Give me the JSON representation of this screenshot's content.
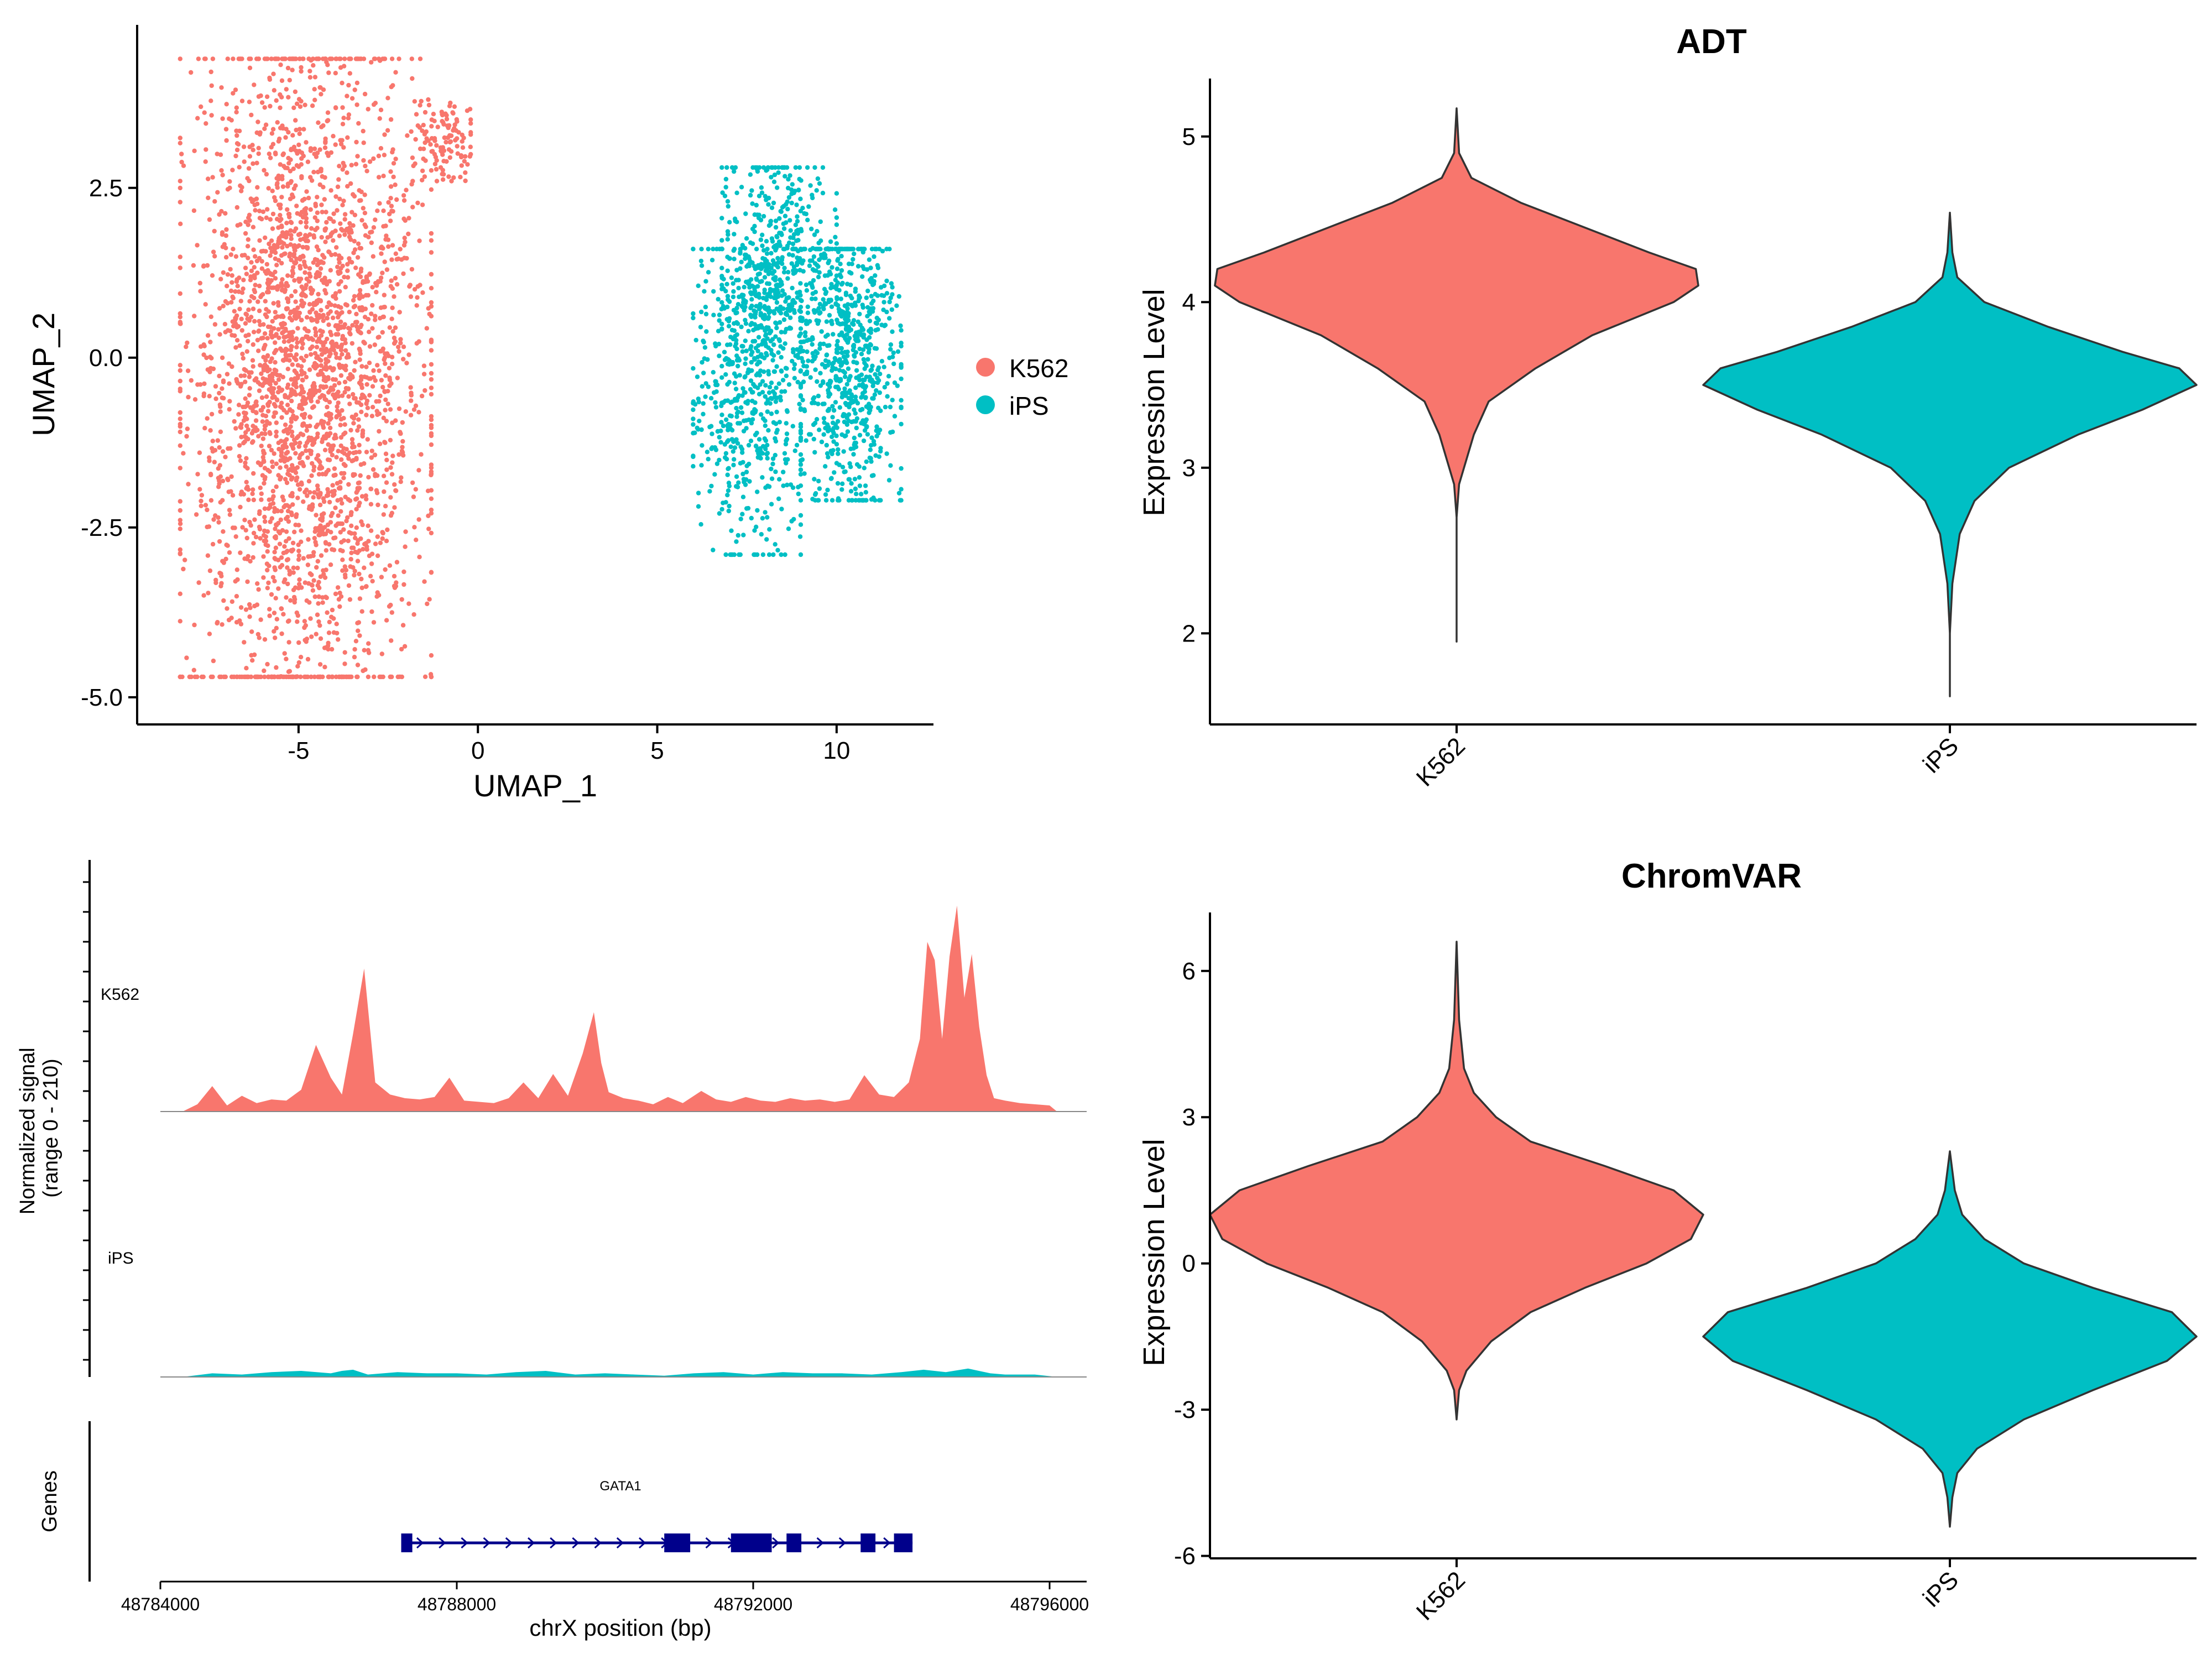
{
  "chart_data": [
    {
      "type": "scatter",
      "xlabel": "UMAP_1",
      "ylabel": "UMAP_2",
      "xlim": [
        -9.5,
        12.7
      ],
      "ylim": [
        -5.4,
        4.9
      ],
      "xticks": [
        -5,
        0,
        5,
        10
      ],
      "xtick_labels": [
        "-5",
        "0",
        "5",
        "10"
      ],
      "yticks": [
        -5.0,
        -2.5,
        0.0,
        2.5
      ],
      "ytick_labels": [
        "-5.0",
        "-2.5",
        "0.0",
        "2.5"
      ],
      "legend_position": "right",
      "series": [
        {
          "name": "K562",
          "color": "#F8766D",
          "clusters": [
            {
              "center": [
                -4.8,
                -0.2
              ],
              "spread": [
                1.6,
                2.4
              ],
              "range_x": [
                -8.3,
                -1.3
              ],
              "range_y": [
                -4.7,
                4.4
              ],
              "share": 0.96
            },
            {
              "center": [
                -1.0,
                3.2
              ],
              "spread": [
                0.4,
                0.3
              ],
              "range_x": [
                -2.2,
                -0.2
              ],
              "range_y": [
                2.6,
                3.8
              ],
              "share": 0.04
            }
          ]
        },
        {
          "name": "iPS",
          "color": "#00BFC4",
          "clusters": [
            {
              "center": [
                7.5,
                -0.6
              ],
              "spread": [
                0.8,
                1.2
              ],
              "range_x": [
                6.0,
                9.0
              ],
              "range_y": [
                -2.9,
                1.6
              ],
              "share": 0.3
            },
            {
              "center": [
                8.3,
                1.2
              ],
              "spread": [
                0.8,
                0.9
              ],
              "range_x": [
                6.8,
                10.0
              ],
              "range_y": [
                -0.8,
                2.8
              ],
              "share": 0.3
            },
            {
              "center": [
                10.3,
                -0.1
              ],
              "spread": [
                0.7,
                1.2
              ],
              "range_x": [
                9.0,
                11.8
              ],
              "range_y": [
                -2.1,
                1.6
              ],
              "share": 0.4
            }
          ]
        }
      ]
    },
    {
      "type": "violin",
      "title": "ADT",
      "ylabel": "Expression Level",
      "categories": [
        "K562",
        "iPS"
      ],
      "ylim": [
        1.45,
        5.35
      ],
      "yticks": [
        2,
        3,
        4,
        5
      ],
      "ytick_labels": [
        "2",
        "3",
        "4",
        "5"
      ],
      "series": [
        {
          "name": "K562",
          "color": "#F8766D",
          "min": 1.95,
          "max": 5.17,
          "profile": [
            [
              1.95,
              0.0
            ],
            [
              2.7,
              0.0
            ],
            [
              2.9,
              0.01
            ],
            [
              3.0,
              0.03
            ],
            [
              3.2,
              0.07
            ],
            [
              3.4,
              0.13
            ],
            [
              3.6,
              0.32
            ],
            [
              3.8,
              0.55
            ],
            [
              4.0,
              0.88
            ],
            [
              4.1,
              0.98
            ],
            [
              4.2,
              0.97
            ],
            [
              4.3,
              0.78
            ],
            [
              4.45,
              0.52
            ],
            [
              4.6,
              0.26
            ],
            [
              4.75,
              0.06
            ],
            [
              4.9,
              0.01
            ],
            [
              5.17,
              0.0
            ]
          ]
        },
        {
          "name": "iPS",
          "color": "#00BFC4",
          "min": 1.62,
          "max": 4.54,
          "profile": [
            [
              1.62,
              0.0
            ],
            [
              2.0,
              0.0
            ],
            [
              2.3,
              0.01
            ],
            [
              2.6,
              0.04
            ],
            [
              2.8,
              0.1
            ],
            [
              3.0,
              0.24
            ],
            [
              3.2,
              0.52
            ],
            [
              3.35,
              0.78
            ],
            [
              3.5,
              1.0
            ],
            [
              3.6,
              0.93
            ],
            [
              3.7,
              0.7
            ],
            [
              3.85,
              0.4
            ],
            [
              4.0,
              0.14
            ],
            [
              4.15,
              0.03
            ],
            [
              4.3,
              0.01
            ],
            [
              4.54,
              0.0
            ]
          ]
        }
      ]
    },
    {
      "type": "area",
      "xlabel": "chrX position (bp)",
      "ylabel": "Normalized signal\n(range 0 - 210)",
      "xlim": [
        48784000,
        48796500
      ],
      "xticks": [
        48784000,
        48788000,
        48792000,
        48796000
      ],
      "xtick_labels": [
        "48784000",
        "48788000",
        "48792000",
        "48796000"
      ],
      "tracks": [
        {
          "name": "K562",
          "color": "#F8766D",
          "x": [
            48784300,
            48784500,
            48784700,
            48784900,
            48785100,
            48785300,
            48785500,
            48785700,
            48785900,
            48786100,
            48786300,
            48786450,
            48786600,
            48786750,
            48786900,
            48787100,
            48787300,
            48787500,
            48787700,
            48787900,
            48788100,
            48788300,
            48788500,
            48788700,
            48788900,
            48789100,
            48789300,
            48789500,
            48789700,
            48789850,
            48789950,
            48790050,
            48790250,
            48790450,
            48790650,
            48790850,
            48791050,
            48791300,
            48791500,
            48791700,
            48791900,
            48792100,
            48792300,
            48792500,
            48792700,
            48792900,
            48793100,
            48793300,
            48793500,
            48793700,
            48793900,
            48794100,
            48794250,
            48794350,
            48794450,
            48794550,
            48794650,
            48794750,
            48794850,
            48794950,
            48795050,
            48795150,
            48795250,
            48795400,
            48795600,
            48795800,
            48796000,
            48796100
          ],
          "values": [
            0,
            6,
            21,
            5,
            13,
            7,
            10,
            9,
            18,
            55,
            28,
            14,
            64,
            118,
            24,
            14,
            11,
            10,
            12,
            28,
            9,
            8,
            7,
            11,
            24,
            11,
            31,
            13,
            48,
            82,
            40,
            16,
            11,
            9,
            6,
            12,
            7,
            17,
            10,
            8,
            12,
            9,
            8,
            11,
            9,
            10,
            8,
            10,
            30,
            14,
            12,
            24,
            60,
            140,
            125,
            60,
            128,
            170,
            94,
            130,
            70,
            30,
            11,
            9,
            7,
            6,
            5,
            0
          ]
        },
        {
          "name": "iPS",
          "color": "#00BFC4",
          "x": [
            48784300,
            48784700,
            48785100,
            48785500,
            48785900,
            48786300,
            48786450,
            48786600,
            48786800,
            48787200,
            48787600,
            48788000,
            48788400,
            48788800,
            48789200,
            48789600,
            48790000,
            48790400,
            48790800,
            48791200,
            48791600,
            48792000,
            48792400,
            48792800,
            48793200,
            48793600,
            48794000,
            48794300,
            48794600,
            48794900,
            48795200,
            48795400,
            48795800,
            48796100
          ],
          "values": [
            0,
            3,
            2,
            4,
            5,
            3,
            5,
            6,
            2,
            4,
            3,
            3,
            2,
            4,
            5,
            2,
            3,
            2,
            1,
            3,
            4,
            2,
            4,
            3,
            3,
            2,
            4,
            6,
            4,
            7,
            3,
            2,
            2,
            0
          ]
        }
      ],
      "genes_label": "Genes",
      "gene": {
        "name": "GATA1",
        "color": "#00008B",
        "start": 48787250,
        "end": 48794150,
        "exons": [
          [
            48787250,
            48787400
          ],
          [
            48790800,
            48791150
          ],
          [
            48791700,
            48792250
          ],
          [
            48792450,
            48792650
          ],
          [
            48793450,
            48793650
          ],
          [
            48793900,
            48794150
          ]
        ]
      }
    },
    {
      "type": "violin",
      "title": "ChromVAR",
      "ylabel": "Expression Level",
      "categories": [
        "K562",
        "iPS"
      ],
      "ylim": [
        -6.05,
        7.2
      ],
      "yticks": [
        -6,
        -3,
        0,
        3,
        6
      ],
      "ytick_labels": [
        "-6",
        "-3",
        "0",
        "3",
        "6"
      ],
      "series": [
        {
          "name": "K562",
          "color": "#F8766D",
          "min": -3.2,
          "max": 6.6,
          "profile": [
            [
              -3.2,
              0.0
            ],
            [
              -2.6,
              0.01
            ],
            [
              -2.2,
              0.04
            ],
            [
              -1.6,
              0.14
            ],
            [
              -1.0,
              0.3
            ],
            [
              -0.5,
              0.52
            ],
            [
              0.0,
              0.77
            ],
            [
              0.5,
              0.95
            ],
            [
              1.0,
              1.0
            ],
            [
              1.5,
              0.88
            ],
            [
              2.0,
              0.6
            ],
            [
              2.5,
              0.3
            ],
            [
              3.0,
              0.16
            ],
            [
              3.5,
              0.07
            ],
            [
              4.0,
              0.03
            ],
            [
              5.0,
              0.01
            ],
            [
              6.6,
              0.0
            ]
          ]
        },
        {
          "name": "iPS",
          "color": "#00BFC4",
          "min": -5.4,
          "max": 2.3,
          "profile": [
            [
              -5.4,
              0.0
            ],
            [
              -4.8,
              0.01
            ],
            [
              -4.3,
              0.03
            ],
            [
              -3.8,
              0.11
            ],
            [
              -3.2,
              0.3
            ],
            [
              -2.6,
              0.58
            ],
            [
              -2.0,
              0.88
            ],
            [
              -1.5,
              1.0
            ],
            [
              -1.0,
              0.9
            ],
            [
              -0.5,
              0.58
            ],
            [
              0.0,
              0.3
            ],
            [
              0.5,
              0.14
            ],
            [
              1.0,
              0.05
            ],
            [
              1.5,
              0.02
            ],
            [
              2.3,
              0.0
            ]
          ]
        }
      ]
    }
  ]
}
